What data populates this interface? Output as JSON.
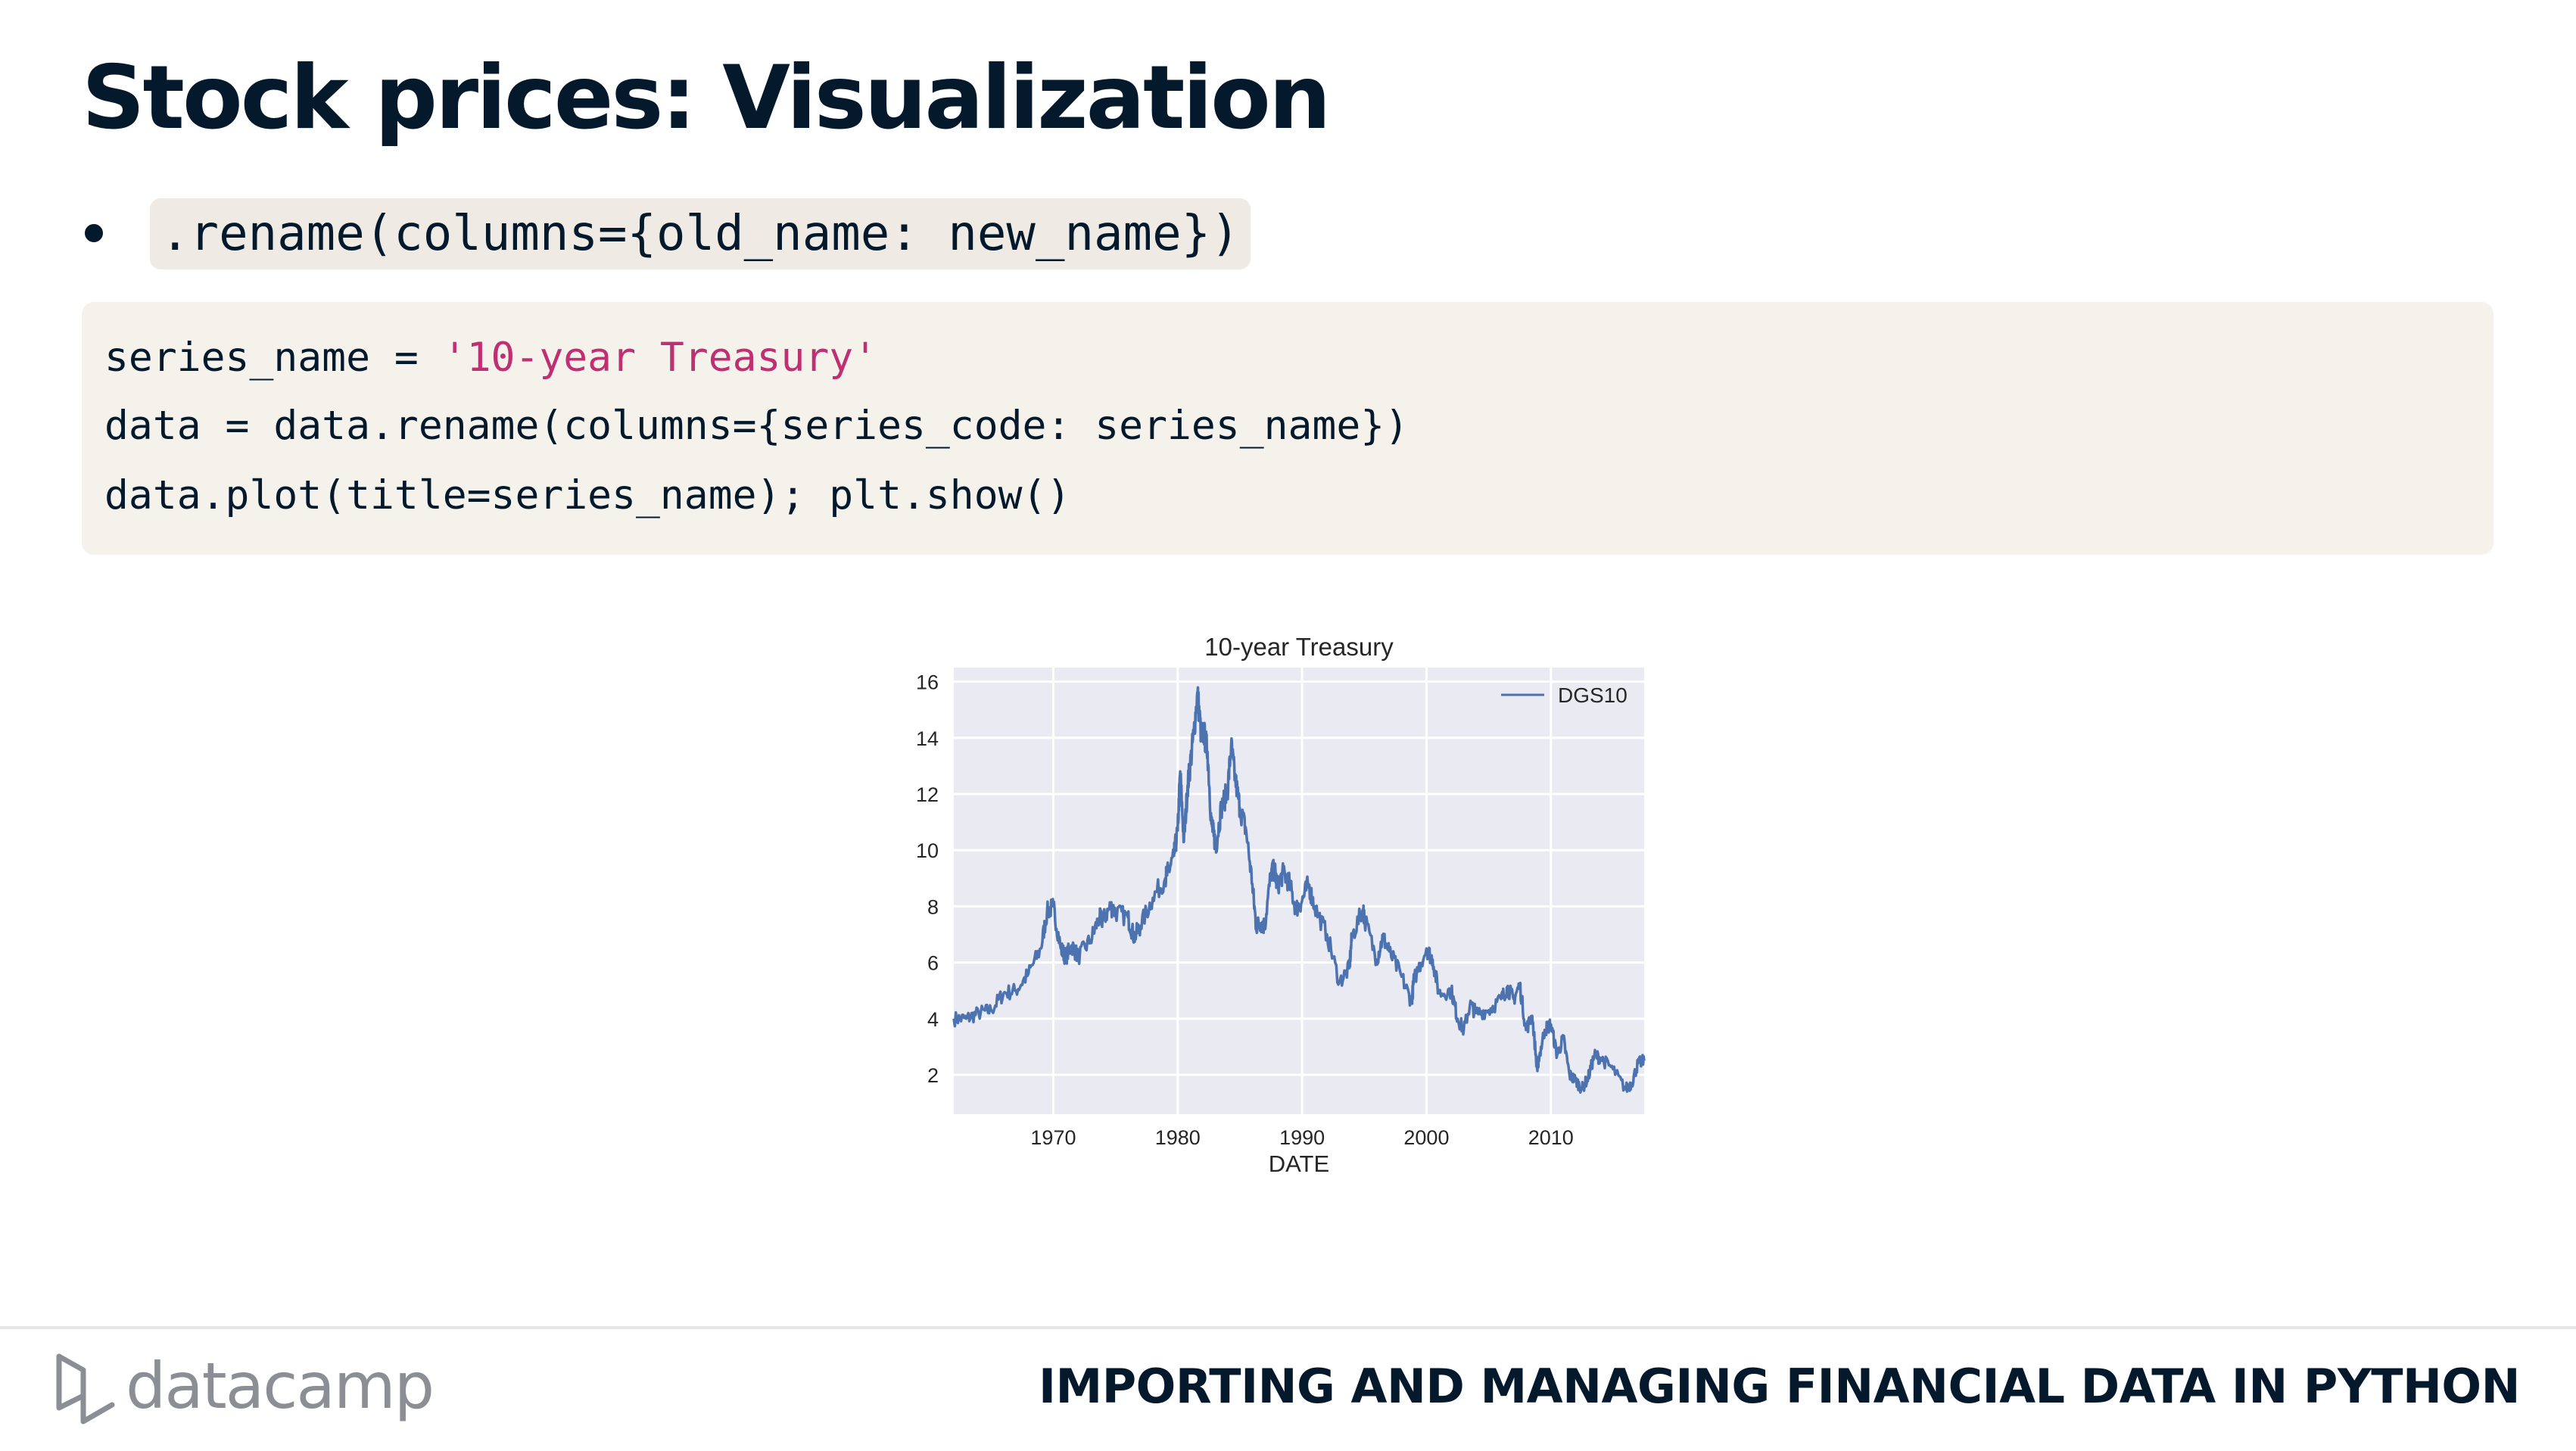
{
  "slide": {
    "title": "Stock prices: Visualization",
    "bullet_code": ".rename(columns={old_name: new_name})"
  },
  "code": {
    "line1_prefix": "series_name = ",
    "line1_string": "'10-year Treasury'",
    "line2": "data = data.rename(columns={series_code: series_name})",
    "line3": "data.plot(title=series_name); plt.show()"
  },
  "chart_data": {
    "type": "line",
    "title": "10-year Treasury",
    "xlabel": "DATE",
    "ylabel": "",
    "xlim": [
      1962,
      2017.5
    ],
    "ylim": [
      0.6,
      16.5
    ],
    "yticks": [
      2,
      4,
      6,
      8,
      10,
      12,
      14,
      16
    ],
    "xticks": [
      1970,
      1980,
      1990,
      2000,
      2010
    ],
    "legend": "top-right",
    "grid": true,
    "series": [
      {
        "name": "DGS10",
        "color": "#4c72b0",
        "x": [
          1962,
          1963,
          1964,
          1965,
          1966,
          1967,
          1968,
          1969,
          1969.5,
          1970,
          1970.6,
          1971,
          1971.5,
          1972,
          1973,
          1973.7,
          1974,
          1974.6,
          1975,
          1976,
          1976.5,
          1977,
          1978,
          1979,
          1979.3,
          1979.7,
          1980,
          1980.2,
          1980.5,
          1980.8,
          1981,
          1981.3,
          1981.6,
          1981.9,
          1982.1,
          1982.4,
          1982.7,
          1982.9,
          1983.1,
          1983.5,
          1984,
          1984.3,
          1984.6,
          1985,
          1985.5,
          1986,
          1986.3,
          1986.7,
          1987,
          1987.5,
          1987.8,
          1988,
          1988.5,
          1989,
          1989.5,
          1990,
          1990.5,
          1991,
          1992,
          1993,
          1993.8,
          1994,
          1994.9,
          1995,
          1996,
          1996.5,
          1997,
          1998,
          1998.8,
          1999,
          2000,
          2000.5,
          2001,
          2002,
          2002.5,
          2003,
          2003.5,
          2004,
          2005,
          2006,
          2006.5,
          2007,
          2007.5,
          2008,
          2008.5,
          2008.9,
          2009,
          2009.5,
          2010,
          2010.5,
          2011,
          2011.5,
          2012,
          2012.5,
          2013,
          2013.5,
          2014,
          2015,
          2016,
          2016.5,
          2017,
          2017.5
        ],
        "values": [
          4.0,
          4.0,
          4.2,
          4.3,
          4.9,
          5.0,
          5.6,
          6.5,
          7.8,
          8.0,
          6.5,
          6.2,
          6.6,
          6.2,
          6.8,
          7.6,
          7.5,
          8.0,
          7.8,
          7.6,
          6.9,
          7.3,
          8.3,
          9.0,
          9.3,
          9.8,
          10.7,
          12.8,
          10.3,
          12.3,
          13.0,
          14.2,
          15.6,
          14.0,
          14.2,
          13.5,
          11.0,
          10.5,
          10.2,
          11.5,
          12.1,
          13.7,
          12.6,
          11.5,
          10.7,
          8.8,
          7.3,
          7.4,
          7.3,
          9.2,
          9.3,
          8.7,
          9.2,
          8.8,
          7.9,
          8.2,
          8.8,
          8.0,
          7.0,
          5.3,
          5.8,
          6.9,
          7.9,
          7.6,
          6.1,
          6.9,
          6.4,
          5.5,
          4.6,
          5.4,
          6.5,
          6.1,
          4.9,
          5.0,
          4.0,
          3.6,
          4.5,
          4.2,
          4.3,
          4.7,
          5.1,
          4.7,
          5.2,
          3.6,
          4.1,
          2.2,
          2.5,
          3.6,
          3.8,
          2.7,
          3.3,
          2.0,
          1.8,
          1.5,
          1.9,
          2.7,
          2.6,
          2.2,
          1.5,
          1.7,
          2.4,
          2.5
        ]
      }
    ]
  },
  "footer": {
    "logo_text": "datacamp",
    "course_title": "IMPORTING AND MANAGING FINANCIAL DATA IN PYTHON"
  }
}
